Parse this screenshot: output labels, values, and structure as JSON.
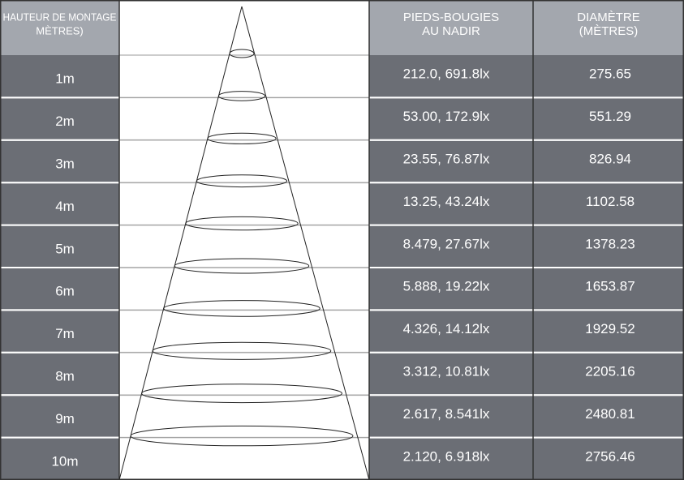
{
  "header": {
    "mounting_height": [
      "HAUTEUR DE MONTAGE",
      "MÈTRES)"
    ],
    "footcandles": [
      "PIEDS-BOUGIES",
      "AU NADIR"
    ],
    "diameter": [
      "DIAMÈTRE",
      "(MÈTRES)"
    ]
  },
  "rows": [
    [
      "1m",
      "212.0, 691.8lx",
      "275.65"
    ],
    [
      "2m",
      "53.00, 172.9lx",
      "551.29"
    ],
    [
      "3m",
      "23.55, 76.87lx",
      "826.94"
    ],
    [
      "4m",
      "13.25, 43.24lx",
      "1102.58"
    ],
    [
      "5m",
      "8.479, 27.67lx",
      "1378.23"
    ],
    [
      "6m",
      "5.888, 19.22lx",
      "1653.87"
    ],
    [
      "7m",
      "4.326, 14.12lx",
      "1929.52"
    ],
    [
      "8m",
      "3.312, 10.81lx",
      "2205.16"
    ],
    [
      "9m",
      "2.617, 8.541lx",
      "2480.81"
    ],
    [
      "10m",
      "2.120, 6.918lx",
      "2756.46"
    ]
  ]
}
